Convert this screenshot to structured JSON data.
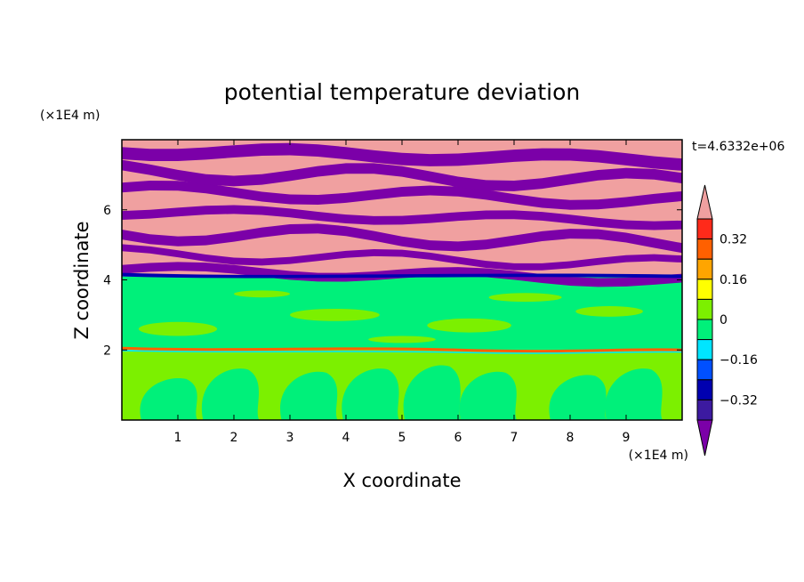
{
  "chart_data": {
    "type": "heatmap",
    "title": "potential temperature deviation",
    "xlabel": "X coordinate",
    "ylabel": "Z coordinate",
    "x_unit": "(×1E4 m)",
    "y_unit": "(×1E4 m)",
    "time_label": "t=4.6332e+06",
    "xlim": [
      0,
      10
    ],
    "ylim": [
      0,
      8
    ],
    "xticks": [
      "1",
      "2",
      "3",
      "4",
      "5",
      "6",
      "7",
      "8",
      "9"
    ],
    "yticks": [
      "2",
      "4",
      "6"
    ],
    "colorbar": {
      "levels": [
        -0.48,
        -0.4,
        -0.32,
        -0.24,
        -0.16,
        -0.08,
        0,
        0.08,
        0.16,
        0.24,
        0.32,
        0.4,
        0.48
      ],
      "tick_labels": [
        "0.32",
        "0.16",
        "0",
        "−0.16",
        "−0.32"
      ],
      "colors": [
        "#7b00a8",
        "#3c1aa0",
        "#0000b0",
        "#0050ff",
        "#00e5ff",
        "#00f07a",
        "#7cf000",
        "#ffff00",
        "#ffa500",
        "#ff6000",
        "#ff2a1a",
        "#f0a0a0"
      ]
    },
    "regions": [
      {
        "z_range": [
          0,
          2
        ],
        "description": "mostly slightly positive (0 to 0.08) with rising slightly negative plumes"
      },
      {
        "z_range": [
          2,
          4.1
        ],
        "description": "near-zero mixed layer, values -0.08 to 0.08"
      },
      {
        "z_range": [
          4.1,
          8
        ],
        "description": "alternating stratified bands of strong positive (>0.48) and strong negative (<-0.48)"
      }
    ]
  }
}
